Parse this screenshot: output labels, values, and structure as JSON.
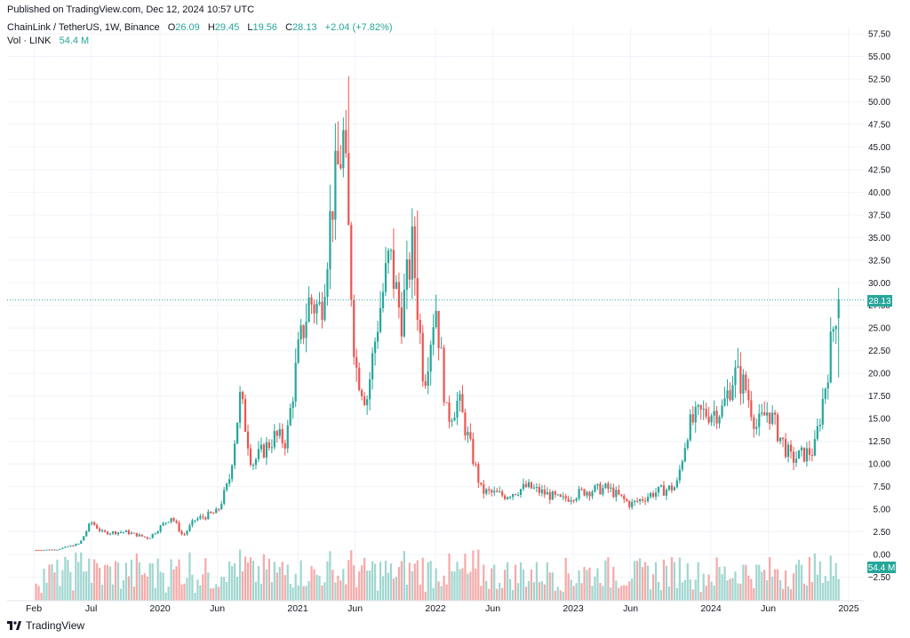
{
  "header": {
    "published": "Published on TradingView.com, Dec 12, 2024 10:57 UTC"
  },
  "legend": {
    "symbol": "ChainLink / TetherUS, 1W, Binance",
    "o_label": "O",
    "o_value": "26.09",
    "h_label": "H",
    "h_value": "29.45",
    "l_label": "L",
    "l_value": "19.56",
    "c_label": "C",
    "c_value": "28.13",
    "change": "+2.04 (+7.82%)",
    "vol_label": "Vol · LINK",
    "vol_value": "54.4 M"
  },
  "footer": {
    "brand": "TradingView"
  },
  "colors": {
    "up": "#26a69a",
    "down": "#ef5350",
    "vol_up": "#9fd6cf",
    "vol_down": "#f5a9a8",
    "grid": "#f0f3fa",
    "axis_text": "#131722",
    "price_line": "#26a69a"
  },
  "chart_data": {
    "type": "candlestick",
    "symbol": "ChainLink / TetherUS",
    "interval": "1W",
    "exchange": "Binance",
    "y_axis": {
      "position": "right",
      "ticks": [
        "57.50",
        "55.00",
        "52.50",
        "50.00",
        "47.50",
        "45.00",
        "42.50",
        "40.00",
        "37.50",
        "35.00",
        "32.50",
        "30.00",
        "27.50",
        "25.00",
        "22.50",
        "20.00",
        "17.50",
        "15.00",
        "12.50",
        "10.00",
        "7.50",
        "5.00",
        "2.50",
        "0.00",
        "−2.50"
      ],
      "ylim": [
        -3.5,
        58.5
      ]
    },
    "x_axis": {
      "ticks": [
        {
          "label": "Feb",
          "date": "2019-02"
        },
        {
          "label": "Jul",
          "date": "2019-07"
        },
        {
          "label": "2020",
          "date": "2020-01"
        },
        {
          "label": "Jun",
          "date": "2020-06"
        },
        {
          "label": "2021",
          "date": "2021-01"
        },
        {
          "label": "Jun",
          "date": "2021-06"
        },
        {
          "label": "2022",
          "date": "2022-01"
        },
        {
          "label": "Jun",
          "date": "2022-06"
        },
        {
          "label": "2023",
          "date": "2023-01"
        },
        {
          "label": "Jun",
          "date": "2023-06"
        },
        {
          "label": "2024",
          "date": "2024-01"
        },
        {
          "label": "Jun",
          "date": "2024-06"
        },
        {
          "label": "2025",
          "date": "2025-01"
        }
      ]
    },
    "last_price": "28.13",
    "last_volume": "54.4 M",
    "grid": true,
    "approx_weekly_close_path": [
      {
        "date": "2019-01",
        "close": 0.45
      },
      {
        "date": "2019-04",
        "close": 0.55
      },
      {
        "date": "2019-06",
        "close": 1.2
      },
      {
        "date": "2019-07",
        "close": 3.6
      },
      {
        "date": "2019-08",
        "close": 2.4
      },
      {
        "date": "2019-10",
        "close": 2.5
      },
      {
        "date": "2019-12",
        "close": 1.8
      },
      {
        "date": "2020-02",
        "close": 4.2
      },
      {
        "date": "2020-03",
        "close": 2.0
      },
      {
        "date": "2020-04",
        "close": 3.8
      },
      {
        "date": "2020-06",
        "close": 4.7
      },
      {
        "date": "2020-07",
        "close": 8.0
      },
      {
        "date": "2020-08",
        "close": 17.5
      },
      {
        "date": "2020-09",
        "close": 10.0
      },
      {
        "date": "2020-11",
        "close": 13.0
      },
      {
        "date": "2020-12",
        "close": 12.5
      },
      {
        "date": "2021-01",
        "close": 22.0
      },
      {
        "date": "2021-02",
        "close": 28.0
      },
      {
        "date": "2021-03",
        "close": 27.0
      },
      {
        "date": "2021-04",
        "close": 39.0
      },
      {
        "date": "2021-05",
        "close": 46.0
      },
      {
        "date": "2021-06",
        "close": 21.0
      },
      {
        "date": "2021-07",
        "close": 17.0
      },
      {
        "date": "2021-08",
        "close": 26.0
      },
      {
        "date": "2021-09",
        "close": 33.0
      },
      {
        "date": "2021-10",
        "close": 26.0
      },
      {
        "date": "2021-11",
        "close": 34.0
      },
      {
        "date": "2021-12",
        "close": 19.0
      },
      {
        "date": "2022-01",
        "close": 28.0
      },
      {
        "date": "2022-02",
        "close": 15.0
      },
      {
        "date": "2022-03",
        "close": 17.0
      },
      {
        "date": "2022-04",
        "close": 12.0
      },
      {
        "date": "2022-05",
        "close": 7.0
      },
      {
        "date": "2022-07",
        "close": 6.5
      },
      {
        "date": "2022-09",
        "close": 7.5
      },
      {
        "date": "2022-12",
        "close": 6.0
      },
      {
        "date": "2023-02",
        "close": 7.0
      },
      {
        "date": "2023-04",
        "close": 7.3
      },
      {
        "date": "2023-06",
        "close": 5.5
      },
      {
        "date": "2023-08",
        "close": 6.8
      },
      {
        "date": "2023-10",
        "close": 7.5
      },
      {
        "date": "2023-11",
        "close": 14.0
      },
      {
        "date": "2023-12",
        "close": 15.5
      },
      {
        "date": "2024-02",
        "close": 16.0
      },
      {
        "date": "2024-03",
        "close": 20.0
      },
      {
        "date": "2024-04",
        "close": 18.5
      },
      {
        "date": "2024-05",
        "close": 14.0
      },
      {
        "date": "2024-06",
        "close": 16.0
      },
      {
        "date": "2024-07",
        "close": 13.0
      },
      {
        "date": "2024-08",
        "close": 10.5
      },
      {
        "date": "2024-09",
        "close": 11.0
      },
      {
        "date": "2024-10",
        "close": 11.5
      },
      {
        "date": "2024-11",
        "close": 19.0
      },
      {
        "date": "2024-12",
        "close": 28.13
      }
    ]
  }
}
